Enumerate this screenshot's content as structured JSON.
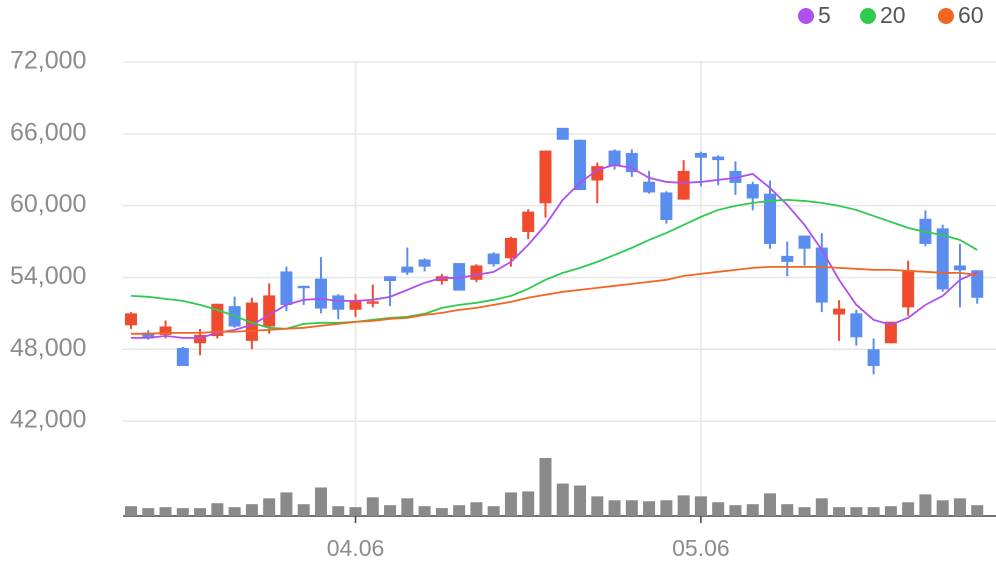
{
  "chart_data": {
    "type": "candlestick",
    "categories": [
      null,
      null,
      null,
      null,
      null,
      null,
      null,
      null,
      null,
      null,
      null,
      null,
      null,
      "04.06",
      null,
      null,
      null,
      null,
      null,
      null,
      null,
      null,
      null,
      null,
      null,
      null,
      null,
      null,
      null,
      null,
      null,
      null,
      null,
      "05.06",
      null,
      null,
      null,
      null,
      null,
      null,
      null,
      null,
      null,
      null,
      null,
      null,
      null,
      null,
      null,
      null
    ],
    "open": [
      50000,
      49400,
      49200,
      48100,
      48500,
      49100,
      51600,
      48700,
      49900,
      54500,
      53300,
      53900,
      52500,
      51300,
      51800,
      54100,
      54900,
      55500,
      53700,
      55200,
      53800,
      56000,
      55600,
      57800,
      60200,
      66500,
      65500,
      62100,
      64600,
      64400,
      62000,
      61100,
      60500,
      64400,
      64100,
      62900,
      61800,
      61000,
      55800,
      57500,
      56500,
      50900,
      51000,
      48000,
      48500,
      51500,
      58900,
      58100,
      55000,
      54600
    ],
    "high": [
      51100,
      49600,
      50400,
      48200,
      49700,
      51800,
      52400,
      52300,
      53500,
      54900,
      53300,
      55700,
      52600,
      52600,
      53400,
      54100,
      56500,
      55600,
      54300,
      55200,
      55100,
      56100,
      57400,
      59700,
      64600,
      66500,
      65500,
      63600,
      64700,
      64700,
      62900,
      61200,
      63800,
      64500,
      64200,
      63700,
      62000,
      62100,
      57000,
      57500,
      57700,
      52100,
      51300,
      48900,
      50300,
      55400,
      59600,
      58400,
      56800,
      54600
    ],
    "low": [
      49700,
      48800,
      48900,
      46600,
      47500,
      48900,
      49800,
      48000,
      49300,
      51200,
      51700,
      51000,
      50500,
      50700,
      51500,
      51600,
      54200,
      54500,
      53400,
      52900,
      53600,
      54900,
      54900,
      57200,
      59000,
      65500,
      61300,
      60200,
      63000,
      62400,
      61000,
      58500,
      60500,
      61600,
      61700,
      60900,
      59600,
      56400,
      54100,
      55000,
      51100,
      48700,
      48300,
      45900,
      48500,
      50800,
      56600,
      52800,
      51500,
      51800
    ],
    "close": [
      51000,
      48900,
      49900,
      46600,
      49200,
      51800,
      49900,
      51900,
      52500,
      51700,
      53100,
      51400,
      51300,
      52000,
      52000,
      53700,
      54400,
      54900,
      54100,
      52900,
      55000,
      55100,
      57300,
      59500,
      64600,
      65500,
      61300,
      63300,
      63300,
      62800,
      61100,
      58800,
      62900,
      64000,
      63800,
      61900,
      60600,
      56800,
      55300,
      56400,
      51900,
      51400,
      49000,
      46600,
      50300,
      54600,
      56800,
      53000,
      54600,
      52300
    ],
    "up_color": "#f04b2e",
    "down_color": "#5b8def",
    "volume": [
      10,
      8,
      9,
      8,
      8,
      13,
      9,
      12,
      18,
      24,
      12,
      29,
      10,
      9,
      19,
      11,
      18,
      10,
      8,
      11,
      14,
      10,
      24,
      25,
      59,
      33,
      31,
      20,
      16,
      16,
      15,
      16,
      21,
      20,
      14,
      11,
      12,
      23,
      12,
      9,
      18,
      9,
      9,
      9,
      10,
      14,
      22,
      16,
      18,
      11
    ],
    "volume_color": "#8a8a8a",
    "volume_lim": [
      0,
      60
    ],
    "moving_averages": [
      {
        "name": "5",
        "color": "#b04ff0",
        "values": [
          48950,
          48950,
          49120,
          48950,
          48950,
          49370,
          49620,
          50040,
          50870,
          51710,
          52130,
          52210,
          52040,
          52040,
          52130,
          52380,
          52960,
          53550,
          53960,
          53960,
          54210,
          54460,
          55300,
          56720,
          58390,
          60480,
          61900,
          62990,
          63400,
          63150,
          62320,
          61980,
          61900,
          61980,
          62150,
          62320,
          62650,
          61480,
          60060,
          58390,
          56300,
          53800,
          51710,
          50460,
          50040,
          50620,
          51710,
          52460,
          53800,
          54460
        ]
      },
      {
        "name": "20",
        "color": "#2ecb4f",
        "values": [
          52460,
          52380,
          52210,
          52040,
          51710,
          51290,
          50790,
          50210,
          49790,
          49710,
          50120,
          50210,
          50210,
          50290,
          50460,
          50620,
          50710,
          50960,
          51460,
          51710,
          51880,
          52130,
          52460,
          53050,
          53800,
          54380,
          54800,
          55300,
          55880,
          56470,
          57130,
          57720,
          58390,
          59060,
          59640,
          59980,
          60230,
          60390,
          60480,
          60390,
          60230,
          59980,
          59640,
          59140,
          58640,
          58140,
          57800,
          57550,
          57130,
          56300
        ]
      },
      {
        "name": "60",
        "color": "#f26522",
        "values": [
          49290,
          49290,
          49370,
          49370,
          49370,
          49460,
          49460,
          49540,
          49620,
          49710,
          49790,
          49960,
          50120,
          50290,
          50370,
          50540,
          50620,
          50870,
          51040,
          51290,
          51460,
          51710,
          51960,
          52300,
          52550,
          52800,
          52960,
          53130,
          53300,
          53460,
          53630,
          53800,
          54130,
          54300,
          54470,
          54630,
          54800,
          54880,
          54880,
          54880,
          54880,
          54800,
          54720,
          54630,
          54630,
          54550,
          54470,
          54380,
          54380,
          54210
        ]
      }
    ],
    "ylim": [
      40000,
      72000
    ],
    "yticks": [
      {
        "value": 42000,
        "label": "42,000"
      },
      {
        "value": 48000,
        "label": "48,000"
      },
      {
        "value": 54000,
        "label": "54,000"
      },
      {
        "value": 60000,
        "label": "60,000"
      },
      {
        "value": 66000,
        "label": "66,000"
      },
      {
        "value": 72000,
        "label": "72,000"
      }
    ],
    "grid": true
  }
}
